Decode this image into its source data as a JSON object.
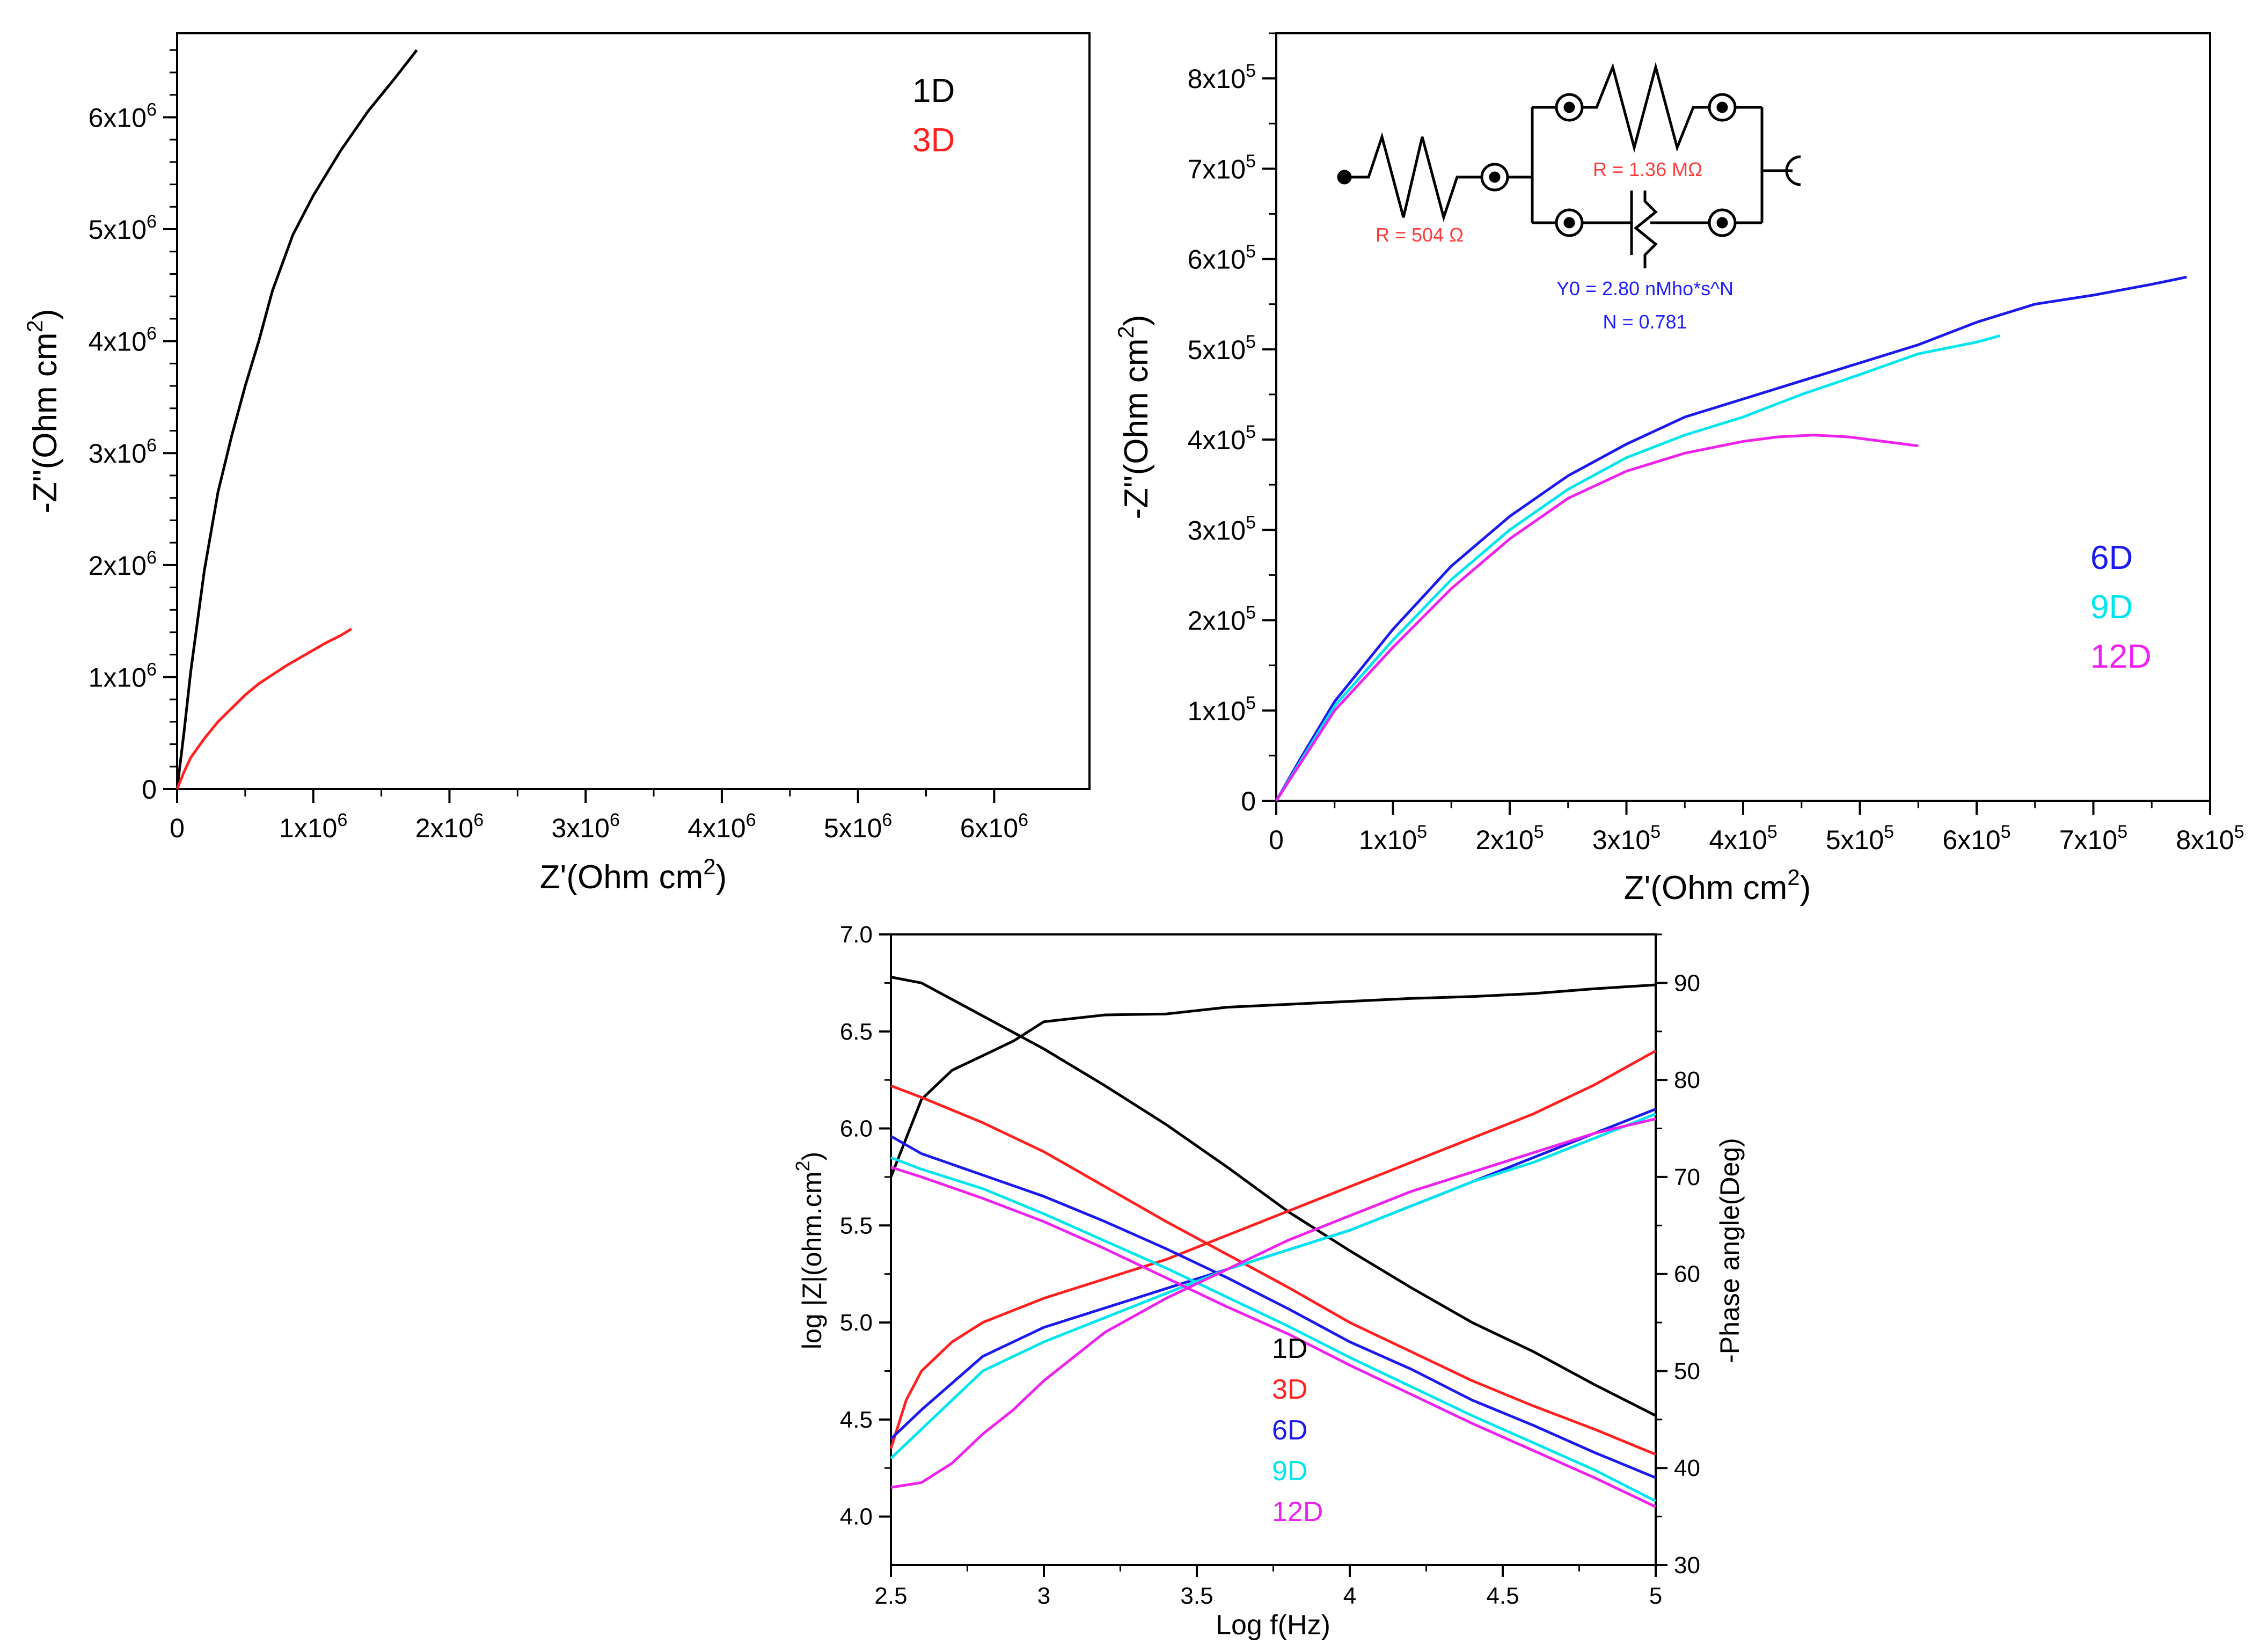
{
  "colors": {
    "black": "#000000",
    "red": "#ff2020",
    "blue": "#1a1aee",
    "cyan": "#00e5ee",
    "magenta": "#ee22ee",
    "circuit_red": "#ff3b3b",
    "circuit_blue": "#2020ff"
  },
  "chart_data": [
    {
      "type": "line",
      "panel": "top-left",
      "xlabel_main": "Z'(Ohm cm",
      "xlabel_sup": "2",
      "xlabel_end": ")",
      "ylabel_main": "-Z''(Ohm cm",
      "ylabel_sup": "2",
      "ylabel_end": ")",
      "xlim": [
        0,
        6.7
      ],
      "ylim": [
        0,
        6.75
      ],
      "unit_note": "values in units of 10^6",
      "x_ticks": [
        {
          "v": 0,
          "base": "0",
          "exp": ""
        },
        {
          "v": 1,
          "base": "1x10",
          "exp": "6"
        },
        {
          "v": 2,
          "base": "2x10",
          "exp": "6"
        },
        {
          "v": 3,
          "base": "3x10",
          "exp": "6"
        },
        {
          "v": 4,
          "base": "4x10",
          "exp": "6"
        },
        {
          "v": 5,
          "base": "5x10",
          "exp": "6"
        },
        {
          "v": 6,
          "base": "6x10",
          "exp": "6"
        }
      ],
      "y_ticks": [
        {
          "v": 0,
          "base": "0",
          "exp": ""
        },
        {
          "v": 1,
          "base": "1x10",
          "exp": "6"
        },
        {
          "v": 2,
          "base": "2x10",
          "exp": "6"
        },
        {
          "v": 3,
          "base": "3x10",
          "exp": "6"
        },
        {
          "v": 4,
          "base": "4x10",
          "exp": "6"
        },
        {
          "v": 5,
          "base": "5x10",
          "exp": "6"
        },
        {
          "v": 6,
          "base": "6x10",
          "exp": "6"
        }
      ],
      "legend": [
        {
          "label": "1D",
          "color": "#000000"
        },
        {
          "label": "3D",
          "color": "#ff2020"
        }
      ],
      "series": [
        {
          "name": "1D",
          "color": "#000000",
          "x": [
            0,
            0.05,
            0.1,
            0.2,
            0.3,
            0.4,
            0.5,
            0.6,
            0.7,
            0.85,
            1.0,
            1.2,
            1.4,
            1.6,
            1.76
          ],
          "y": [
            0,
            0.5,
            1.05,
            1.95,
            2.65,
            3.15,
            3.6,
            4.0,
            4.45,
            4.95,
            5.3,
            5.7,
            6.05,
            6.35,
            6.6
          ]
        },
        {
          "name": "3D",
          "color": "#ff2020",
          "x": [
            0,
            0.05,
            0.1,
            0.2,
            0.3,
            0.4,
            0.5,
            0.6,
            0.7,
            0.8,
            0.9,
            1.0,
            1.1,
            1.2,
            1.28
          ],
          "y": [
            0,
            0.15,
            0.28,
            0.45,
            0.6,
            0.72,
            0.84,
            0.94,
            1.02,
            1.1,
            1.17,
            1.24,
            1.31,
            1.37,
            1.43
          ]
        }
      ]
    },
    {
      "type": "line",
      "panel": "top-right",
      "xlabel_main": "Z'(Ohm cm",
      "xlabel_sup": "2",
      "xlabel_end": ")",
      "ylabel_main": "-Z''(Ohm cm",
      "ylabel_sup": "2",
      "ylabel_end": ")",
      "xlim": [
        0,
        8.0
      ],
      "ylim": [
        0,
        8.5
      ],
      "unit_note": "values in units of 10^5",
      "x_ticks": [
        {
          "v": 0,
          "base": "0",
          "exp": ""
        },
        {
          "v": 1,
          "base": "1x10",
          "exp": "5"
        },
        {
          "v": 2,
          "base": "2x10",
          "exp": "5"
        },
        {
          "v": 3,
          "base": "3x10",
          "exp": "5"
        },
        {
          "v": 4,
          "base": "4x10",
          "exp": "5"
        },
        {
          "v": 5,
          "base": "5x10",
          "exp": "5"
        },
        {
          "v": 6,
          "base": "6x10",
          "exp": "5"
        },
        {
          "v": 7,
          "base": "7x10",
          "exp": "5"
        },
        {
          "v": 8,
          "base": "8x10",
          "exp": "5"
        }
      ],
      "y_ticks": [
        {
          "v": 0,
          "base": "0",
          "exp": ""
        },
        {
          "v": 1,
          "base": "1x10",
          "exp": "5"
        },
        {
          "v": 2,
          "base": "2x10",
          "exp": "5"
        },
        {
          "v": 3,
          "base": "3x10",
          "exp": "5"
        },
        {
          "v": 4,
          "base": "4x10",
          "exp": "5"
        },
        {
          "v": 5,
          "base": "5x10",
          "exp": "5"
        },
        {
          "v": 6,
          "base": "6x10",
          "exp": "5"
        },
        {
          "v": 7,
          "base": "7x10",
          "exp": "5"
        },
        {
          "v": 8,
          "base": "8x10",
          "exp": "5"
        }
      ],
      "legend": [
        {
          "label": "6D",
          "color": "#1a1aee"
        },
        {
          "label": "9D",
          "color": "#00e5ee"
        },
        {
          "label": "12D",
          "color": "#ee22ee"
        }
      ],
      "series": [
        {
          "name": "6D",
          "color": "#1a1aee",
          "x": [
            0,
            0.2,
            0.5,
            1.0,
            1.5,
            2.0,
            2.5,
            3.0,
            3.5,
            4.0,
            4.5,
            5.0,
            5.5,
            6.0,
            6.5,
            7.0,
            7.5,
            7.8
          ],
          "y": [
            0,
            0.45,
            1.1,
            1.9,
            2.6,
            3.15,
            3.6,
            3.95,
            4.25,
            4.45,
            4.65,
            4.85,
            5.05,
            5.3,
            5.5,
            5.6,
            5.72,
            5.8
          ]
        },
        {
          "name": "9D",
          "color": "#00e5ee",
          "x": [
            0,
            0.2,
            0.5,
            1.0,
            1.5,
            2.0,
            2.5,
            3.0,
            3.5,
            4.0,
            4.5,
            5.0,
            5.5,
            6.0,
            6.2
          ],
          "y": [
            0,
            0.42,
            1.05,
            1.78,
            2.45,
            3.0,
            3.45,
            3.8,
            4.05,
            4.25,
            4.5,
            4.72,
            4.95,
            5.08,
            5.15
          ]
        },
        {
          "name": "12D",
          "color": "#ee22ee",
          "x": [
            0,
            0.2,
            0.5,
            1.0,
            1.5,
            2.0,
            2.5,
            3.0,
            3.5,
            4.0,
            4.3,
            4.6,
            4.9,
            5.2,
            5.5
          ],
          "y": [
            0,
            0.4,
            1.0,
            1.7,
            2.35,
            2.9,
            3.35,
            3.65,
            3.85,
            3.98,
            4.03,
            4.05,
            4.03,
            3.98,
            3.93
          ]
        }
      ]
    },
    {
      "type": "line",
      "panel": "bottom",
      "xlabel": "Log f(Hz)",
      "ylabel_left": "log |Z|(ohm.cm",
      "ylabel_left_sup": "2",
      "ylabel_left_end": ")",
      "ylabel_right": "-Phase angle(Deg)",
      "xlim": [
        2.5,
        5.0
      ],
      "ylim_left": [
        3.75,
        7.0
      ],
      "ylim_right": [
        30,
        95
      ],
      "x_ticks": [
        {
          "v": 2.5,
          "label": "2.5"
        },
        {
          "v": 3.0,
          "label": "3"
        },
        {
          "v": 3.5,
          "label": "3.5"
        },
        {
          "v": 4.0,
          "label": "4"
        },
        {
          "v": 4.5,
          "label": "4.5"
        },
        {
          "v": 5.0,
          "label": "5"
        }
      ],
      "y_ticks_left": [
        {
          "v": 4.0,
          "label": "4.0"
        },
        {
          "v": 4.5,
          "label": "4.5"
        },
        {
          "v": 5.0,
          "label": "5.0"
        },
        {
          "v": 5.5,
          "label": "5.5"
        },
        {
          "v": 6.0,
          "label": "6.0"
        },
        {
          "v": 6.5,
          "label": "6.5"
        },
        {
          "v": 7.0,
          "label": "7.0"
        }
      ],
      "y_ticks_right": [
        {
          "v": 30,
          "label": "30"
        },
        {
          "v": 40,
          "label": "40"
        },
        {
          "v": 50,
          "label": "50"
        },
        {
          "v": 60,
          "label": "60"
        },
        {
          "v": 70,
          "label": "70"
        },
        {
          "v": 80,
          "label": "80"
        },
        {
          "v": 90,
          "label": "90"
        }
      ],
      "legend": [
        {
          "label": "1D",
          "color": "#000000"
        },
        {
          "label": "3D",
          "color": "#ff2020"
        },
        {
          "label": "6D",
          "color": "#1a1aee"
        },
        {
          "label": "9D",
          "color": "#00e5ee"
        },
        {
          "label": "12D",
          "color": "#ee22ee"
        }
      ],
      "series": [
        {
          "name": "1D |Z|",
          "color": "#000000",
          "axis": "left",
          "x": [
            2.5,
            2.6,
            2.8,
            3.0,
            3.2,
            3.4,
            3.6,
            3.8,
            4.0,
            4.2,
            4.4,
            4.6,
            4.8,
            5.0
          ],
          "y": [
            6.78,
            6.75,
            6.58,
            6.41,
            6.22,
            6.02,
            5.8,
            5.57,
            5.37,
            5.18,
            5.0,
            4.85,
            4.68,
            4.52
          ]
        },
        {
          "name": "1D phase",
          "color": "#000000",
          "axis": "right",
          "x": [
            2.5,
            2.6,
            2.7,
            2.8,
            2.9,
            3.0,
            3.2,
            3.4,
            3.6,
            3.8,
            4.0,
            4.2,
            4.4,
            4.6,
            4.8,
            5.0
          ],
          "y": [
            70,
            78,
            81,
            82.5,
            84,
            86,
            86.7,
            86.8,
            87.5,
            87.8,
            88.1,
            88.4,
            88.6,
            88.9,
            89.4,
            89.8
          ]
        },
        {
          "name": "3D |Z|",
          "color": "#ff2020",
          "axis": "left",
          "x": [
            2.5,
            2.6,
            2.8,
            3.0,
            3.2,
            3.4,
            3.6,
            3.8,
            4.0,
            4.2,
            4.4,
            4.6,
            4.8,
            5.0
          ],
          "y": [
            6.22,
            6.16,
            6.03,
            5.88,
            5.7,
            5.52,
            5.35,
            5.18,
            5.0,
            4.85,
            4.7,
            4.57,
            4.45,
            4.32
          ]
        },
        {
          "name": "3D phase",
          "color": "#ff2020",
          "axis": "right",
          "x": [
            2.5,
            2.55,
            2.6,
            2.7,
            2.8,
            3.0,
            3.2,
            3.4,
            3.6,
            3.8,
            4.0,
            4.2,
            4.4,
            4.6,
            4.8,
            5.0
          ],
          "y": [
            42,
            47,
            50,
            53,
            55,
            57.5,
            59.5,
            61.5,
            64,
            66.5,
            69,
            71.5,
            74,
            76.5,
            79.5,
            83
          ]
        },
        {
          "name": "6D |Z|",
          "color": "#1a1aee",
          "axis": "left",
          "x": [
            2.5,
            2.6,
            2.8,
            3.0,
            3.2,
            3.4,
            3.6,
            3.8,
            4.0,
            4.2,
            4.4,
            4.6,
            4.8,
            5.0
          ],
          "y": [
            5.96,
            5.87,
            5.76,
            5.65,
            5.52,
            5.38,
            5.23,
            5.07,
            4.9,
            4.76,
            4.6,
            4.47,
            4.33,
            4.2
          ]
        },
        {
          "name": "6D phase",
          "color": "#1a1aee",
          "axis": "right",
          "x": [
            2.5,
            2.6,
            2.8,
            3.0,
            3.2,
            3.4,
            3.6,
            3.8,
            4.0,
            4.2,
            4.4,
            4.6,
            4.8,
            5.0
          ],
          "y": [
            43,
            46,
            51.5,
            54.5,
            56.5,
            58.5,
            60.5,
            62.5,
            64.5,
            67,
            69.5,
            72,
            74.5,
            77
          ]
        },
        {
          "name": "9D |Z|",
          "color": "#00e5ee",
          "axis": "left",
          "x": [
            2.5,
            2.6,
            2.8,
            3.0,
            3.2,
            3.4,
            3.6,
            3.8,
            4.0,
            4.2,
            4.4,
            4.6,
            4.8,
            5.0
          ],
          "y": [
            5.85,
            5.79,
            5.69,
            5.56,
            5.42,
            5.28,
            5.13,
            4.98,
            4.82,
            4.67,
            4.52,
            4.38,
            4.24,
            4.08
          ]
        },
        {
          "name": "9D phase",
          "color": "#00e5ee",
          "axis": "right",
          "x": [
            2.5,
            2.6,
            2.8,
            3.0,
            3.2,
            3.4,
            3.6,
            3.8,
            4.0,
            4.2,
            4.4,
            4.6,
            4.8,
            5.0
          ],
          "y": [
            41,
            44,
            50,
            53,
            55.5,
            58,
            60.5,
            62.5,
            64.5,
            67,
            69.5,
            71.5,
            74,
            76.5
          ]
        },
        {
          "name": "12D |Z|",
          "color": "#ee22ee",
          "axis": "left",
          "x": [
            2.5,
            2.6,
            2.8,
            3.0,
            3.2,
            3.4,
            3.6,
            3.8,
            4.0,
            4.2,
            4.4,
            4.6,
            4.8,
            5.0
          ],
          "y": [
            5.8,
            5.75,
            5.64,
            5.52,
            5.38,
            5.23,
            5.08,
            4.94,
            4.78,
            4.63,
            4.48,
            4.34,
            4.2,
            4.05
          ]
        },
        {
          "name": "12D phase",
          "color": "#ee22ee",
          "axis": "right",
          "x": [
            2.5,
            2.6,
            2.7,
            2.8,
            2.9,
            3.0,
            3.2,
            3.4,
            3.6,
            3.8,
            4.0,
            4.2,
            4.4,
            4.6,
            4.8,
            5.0
          ],
          "y": [
            38,
            38.5,
            40.5,
            43.5,
            46,
            49,
            54,
            57.5,
            60.5,
            63.5,
            66,
            68.5,
            70.5,
            72.5,
            74.5,
            76
          ]
        }
      ]
    }
  ],
  "circuit": {
    "r_solution": "R = 504 Ω",
    "r_parallel": "R = 1.36 MΩ",
    "cpe_y0": "Y0 = 2.80 nMho*s^N",
    "cpe_n": "N = 0.781"
  }
}
